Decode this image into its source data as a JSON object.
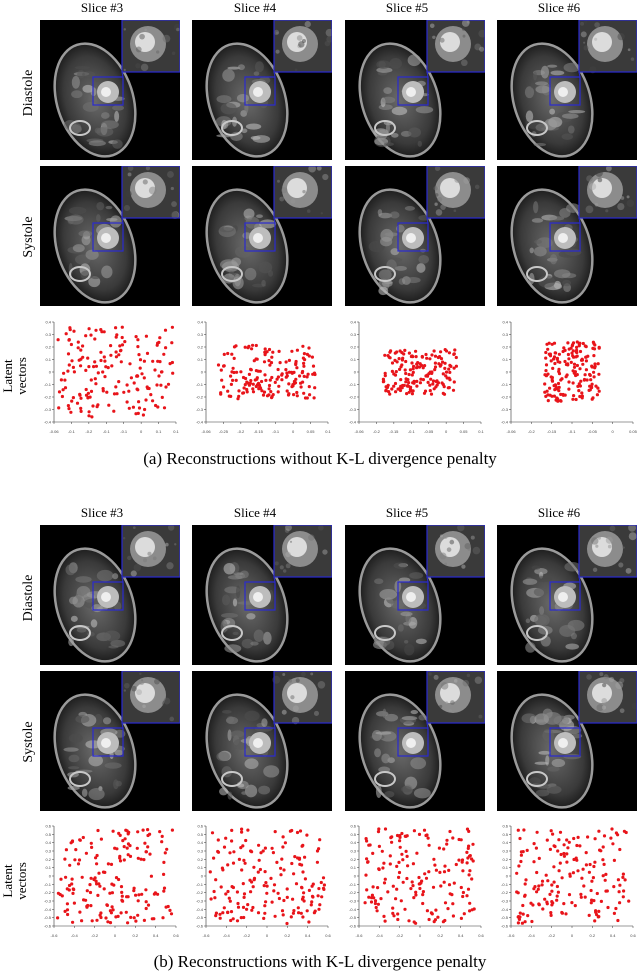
{
  "slices": [
    "Slice #3",
    "Slice #4",
    "Slice #5",
    "Slice #6"
  ],
  "rows": {
    "diastole": "Diastole",
    "systole": "Systole",
    "latent_line1": "Latent",
    "latent_line2": "vectors"
  },
  "captions": {
    "a": "(a)  Reconstructions without K-L divergence penalty",
    "b": "(b)  Reconstructions with K-L divergence penalty"
  },
  "colors": {
    "point": "#e8141a",
    "box": "#2a2ad0",
    "axis": "#333333"
  },
  "chart_data": [
    {
      "type": "scatter",
      "panel": "a",
      "slice": "Slice #3",
      "xlim": [
        -0.06,
        0.06
      ],
      "ylim": [
        -0.4,
        0.4
      ],
      "xticks": [
        "-0.06",
        "-0.1",
        "-0.2",
        "-0.1",
        "-0.1",
        "0",
        "0.1",
        "0.1"
      ],
      "yticks": [
        "0.4",
        "0.3",
        "0.2",
        "0.1",
        "0",
        "-0.1",
        "-0.2",
        "-0.3",
        "-0.4"
      ],
      "spread": [
        0.95,
        0.9
      ]
    },
    {
      "type": "scatter",
      "panel": "a",
      "slice": "Slice #4",
      "xlim": [
        -0.06,
        0.06
      ],
      "ylim": [
        -0.4,
        0.4
      ],
      "xticks": [
        "-0.06",
        "-0.25",
        "-0.2",
        "-0.15",
        "-0.1",
        "0",
        "0.05",
        "0.1"
      ],
      "yticks": [
        "0.4",
        "0.3",
        "0.2",
        "0.1",
        "0",
        "-0.1",
        "-0.2",
        "-0.3",
        "-0.4"
      ],
      "spread": [
        0.8,
        0.55
      ]
    },
    {
      "type": "scatter",
      "panel": "a",
      "slice": "Slice #5",
      "xlim": [
        -0.06,
        0.06
      ],
      "ylim": [
        -0.4,
        0.4
      ],
      "xticks": [
        "-0.06",
        "-0.2",
        "-0.15",
        "-0.1",
        "-0.05",
        "0",
        "0.05",
        "0.1"
      ],
      "yticks": [
        "0.4",
        "0.3",
        "0.2",
        "0.1",
        "0",
        "-0.1",
        "-0.2",
        "-0.3",
        "-0.4"
      ],
      "spread": [
        0.6,
        0.45
      ]
    },
    {
      "type": "scatter",
      "panel": "a",
      "slice": "Slice #6",
      "xlim": [
        -0.06,
        0.06
      ],
      "ylim": [
        -0.4,
        0.4
      ],
      "xticks": [
        "-0.06",
        "-0.2",
        "-0.15",
        "-0.1",
        "-0.05",
        "0",
        "0.05"
      ],
      "yticks": [
        "0.4",
        "0.3",
        "0.2",
        "0.1",
        "0",
        "-0.1",
        "-0.2",
        "-0.3",
        "-0.4"
      ],
      "spread": [
        0.45,
        0.6
      ]
    },
    {
      "type": "scatter",
      "panel": "b",
      "slice": "Slice #3",
      "xlim": [
        -0.6,
        0.6
      ],
      "ylim": [
        -0.6,
        0.6
      ],
      "xticks": [
        "-0.6",
        "-0.4",
        "-0.2",
        "0",
        "0.2",
        "0.4",
        "0.6"
      ],
      "yticks": [
        "0.6",
        "0.5",
        "0.4",
        "0.3",
        "0.2",
        "0.1",
        "0",
        "-0.1",
        "-0.2",
        "-0.3",
        "-0.4",
        "-0.5",
        "-0.6"
      ],
      "spread": [
        0.95,
        0.95
      ]
    },
    {
      "type": "scatter",
      "panel": "b",
      "slice": "Slice #4",
      "xlim": [
        -0.6,
        0.6
      ],
      "ylim": [
        -0.6,
        0.6
      ],
      "xticks": [
        "-0.6",
        "-0.4",
        "-0.2",
        "0",
        "0.2",
        "0.4",
        "0.6"
      ],
      "yticks": [
        "0.6",
        "0.5",
        "0.4",
        "0.3",
        "0.2",
        "0.1",
        "0",
        "-0.1",
        "-0.2",
        "-0.3",
        "-0.4",
        "-0.5",
        "-0.6"
      ],
      "spread": [
        0.95,
        0.95
      ]
    },
    {
      "type": "scatter",
      "panel": "b",
      "slice": "Slice #5",
      "xlim": [
        -0.6,
        0.6
      ],
      "ylim": [
        -0.6,
        0.6
      ],
      "xticks": [
        "-0.6",
        "-0.4",
        "-0.2",
        "0",
        "0.2",
        "0.4",
        "0.6"
      ],
      "yticks": [
        "0.6",
        "0.5",
        "0.4",
        "0.3",
        "0.2",
        "0.1",
        "0",
        "-0.1",
        "-0.2",
        "-0.3",
        "-0.4",
        "-0.5",
        "-0.6"
      ],
      "spread": [
        0.9,
        0.95
      ]
    },
    {
      "type": "scatter",
      "panel": "b",
      "slice": "Slice #6",
      "xlim": [
        -0.6,
        0.6
      ],
      "ylim": [
        -0.6,
        0.6
      ],
      "xticks": [
        "-0.6",
        "-0.4",
        "-0.2",
        "0",
        "0.2",
        "0.4",
        "0.6"
      ],
      "yticks": [
        "0.6",
        "0.5",
        "0.4",
        "0.3",
        "0.2",
        "0.1",
        "0",
        "-0.1",
        "-0.2",
        "-0.3",
        "-0.4",
        "-0.5",
        "-0.6"
      ],
      "spread": [
        0.95,
        0.95
      ]
    }
  ]
}
